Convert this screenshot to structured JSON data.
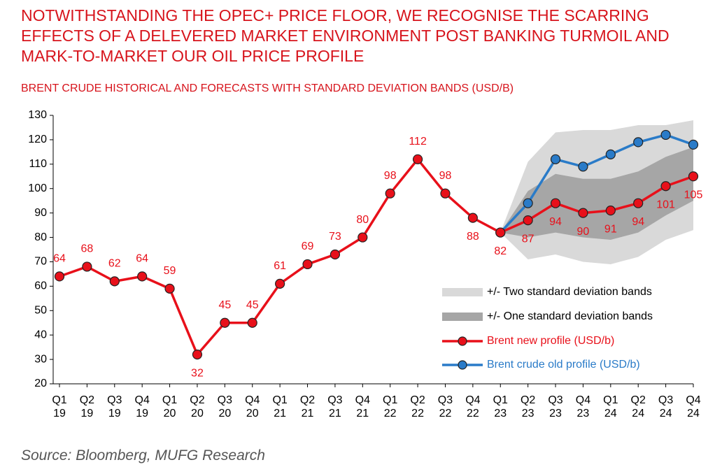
{
  "chart_data": {
    "type": "line",
    "title": "NOTWITHSTANDING THE OPEC+ PRICE FLOOR, WE RECOGNISE THE SCARRING EFFECTS OF A DELEVERED MARKET ENVIRONMENT POST BANKING TURMOIL AND MARK-TO-MARKET OUR OIL PRICE PROFILE",
    "subtitle": "BRENT CRUDE HISTORICAL AND FORECASTS WITH STANDARD DEVIATION BANDS (USD/B)",
    "source": "Source: Bloomberg, MUFG Research",
    "categories": [
      "Q1 19",
      "Q2 19",
      "Q3 19",
      "Q4 19",
      "Q1 20",
      "Q2 20",
      "Q3 20",
      "Q4 20",
      "Q1 21",
      "Q2 21",
      "Q3 21",
      "Q4 21",
      "Q1 22",
      "Q2 22",
      "Q3 22",
      "Q4 22",
      "Q1 23",
      "Q2 23",
      "Q3 23",
      "Q4 23",
      "Q1 24",
      "Q2 24",
      "Q3 24",
      "Q4 24"
    ],
    "bands": [
      {
        "name": "+/- Two standard deviation bands",
        "color": "#d9d9d9",
        "lower": [
          null,
          null,
          null,
          null,
          null,
          null,
          null,
          null,
          null,
          null,
          null,
          null,
          null,
          null,
          null,
          null,
          82,
          71,
          73,
          70,
          69,
          72,
          79,
          83
        ],
        "upper": [
          null,
          null,
          null,
          null,
          null,
          null,
          null,
          null,
          null,
          null,
          null,
          null,
          null,
          null,
          null,
          null,
          82,
          111,
          123,
          124,
          124,
          126,
          126,
          128
        ]
      },
      {
        "name": "+/- One standard deviation bands",
        "color": "#a6a6a6",
        "lower": [
          null,
          null,
          null,
          null,
          null,
          null,
          null,
          null,
          null,
          null,
          null,
          null,
          null,
          null,
          null,
          null,
          82,
          80,
          82,
          80,
          79,
          82,
          89,
          95
        ],
        "upper": [
          null,
          null,
          null,
          null,
          null,
          null,
          null,
          null,
          null,
          null,
          null,
          null,
          null,
          null,
          null,
          null,
          82,
          99,
          106,
          104,
          104,
          107,
          113,
          117
        ]
      }
    ],
    "series": [
      {
        "name": "Brent new profile (USD/b)",
        "color": "#e8101a",
        "text_color": "#e8101a",
        "values": [
          64,
          68,
          62,
          64,
          59,
          32,
          45,
          45,
          61,
          69,
          73,
          80,
          98,
          112,
          98,
          88,
          82,
          87,
          94,
          90,
          91,
          94,
          101,
          105
        ]
      },
      {
        "name": "Brent crude old profile (USD/b)",
        "color": "#2a7bc8",
        "text_color": "#2a7bc8",
        "values": [
          null,
          null,
          null,
          null,
          null,
          null,
          null,
          null,
          null,
          null,
          null,
          null,
          null,
          null,
          null,
          null,
          82,
          94,
          112,
          109,
          114,
          119,
          122,
          118
        ]
      }
    ],
    "ylim": [
      20,
      130
    ],
    "yticks": [
      20,
      30,
      40,
      50,
      60,
      70,
      80,
      90,
      100,
      110,
      120,
      130
    ]
  }
}
